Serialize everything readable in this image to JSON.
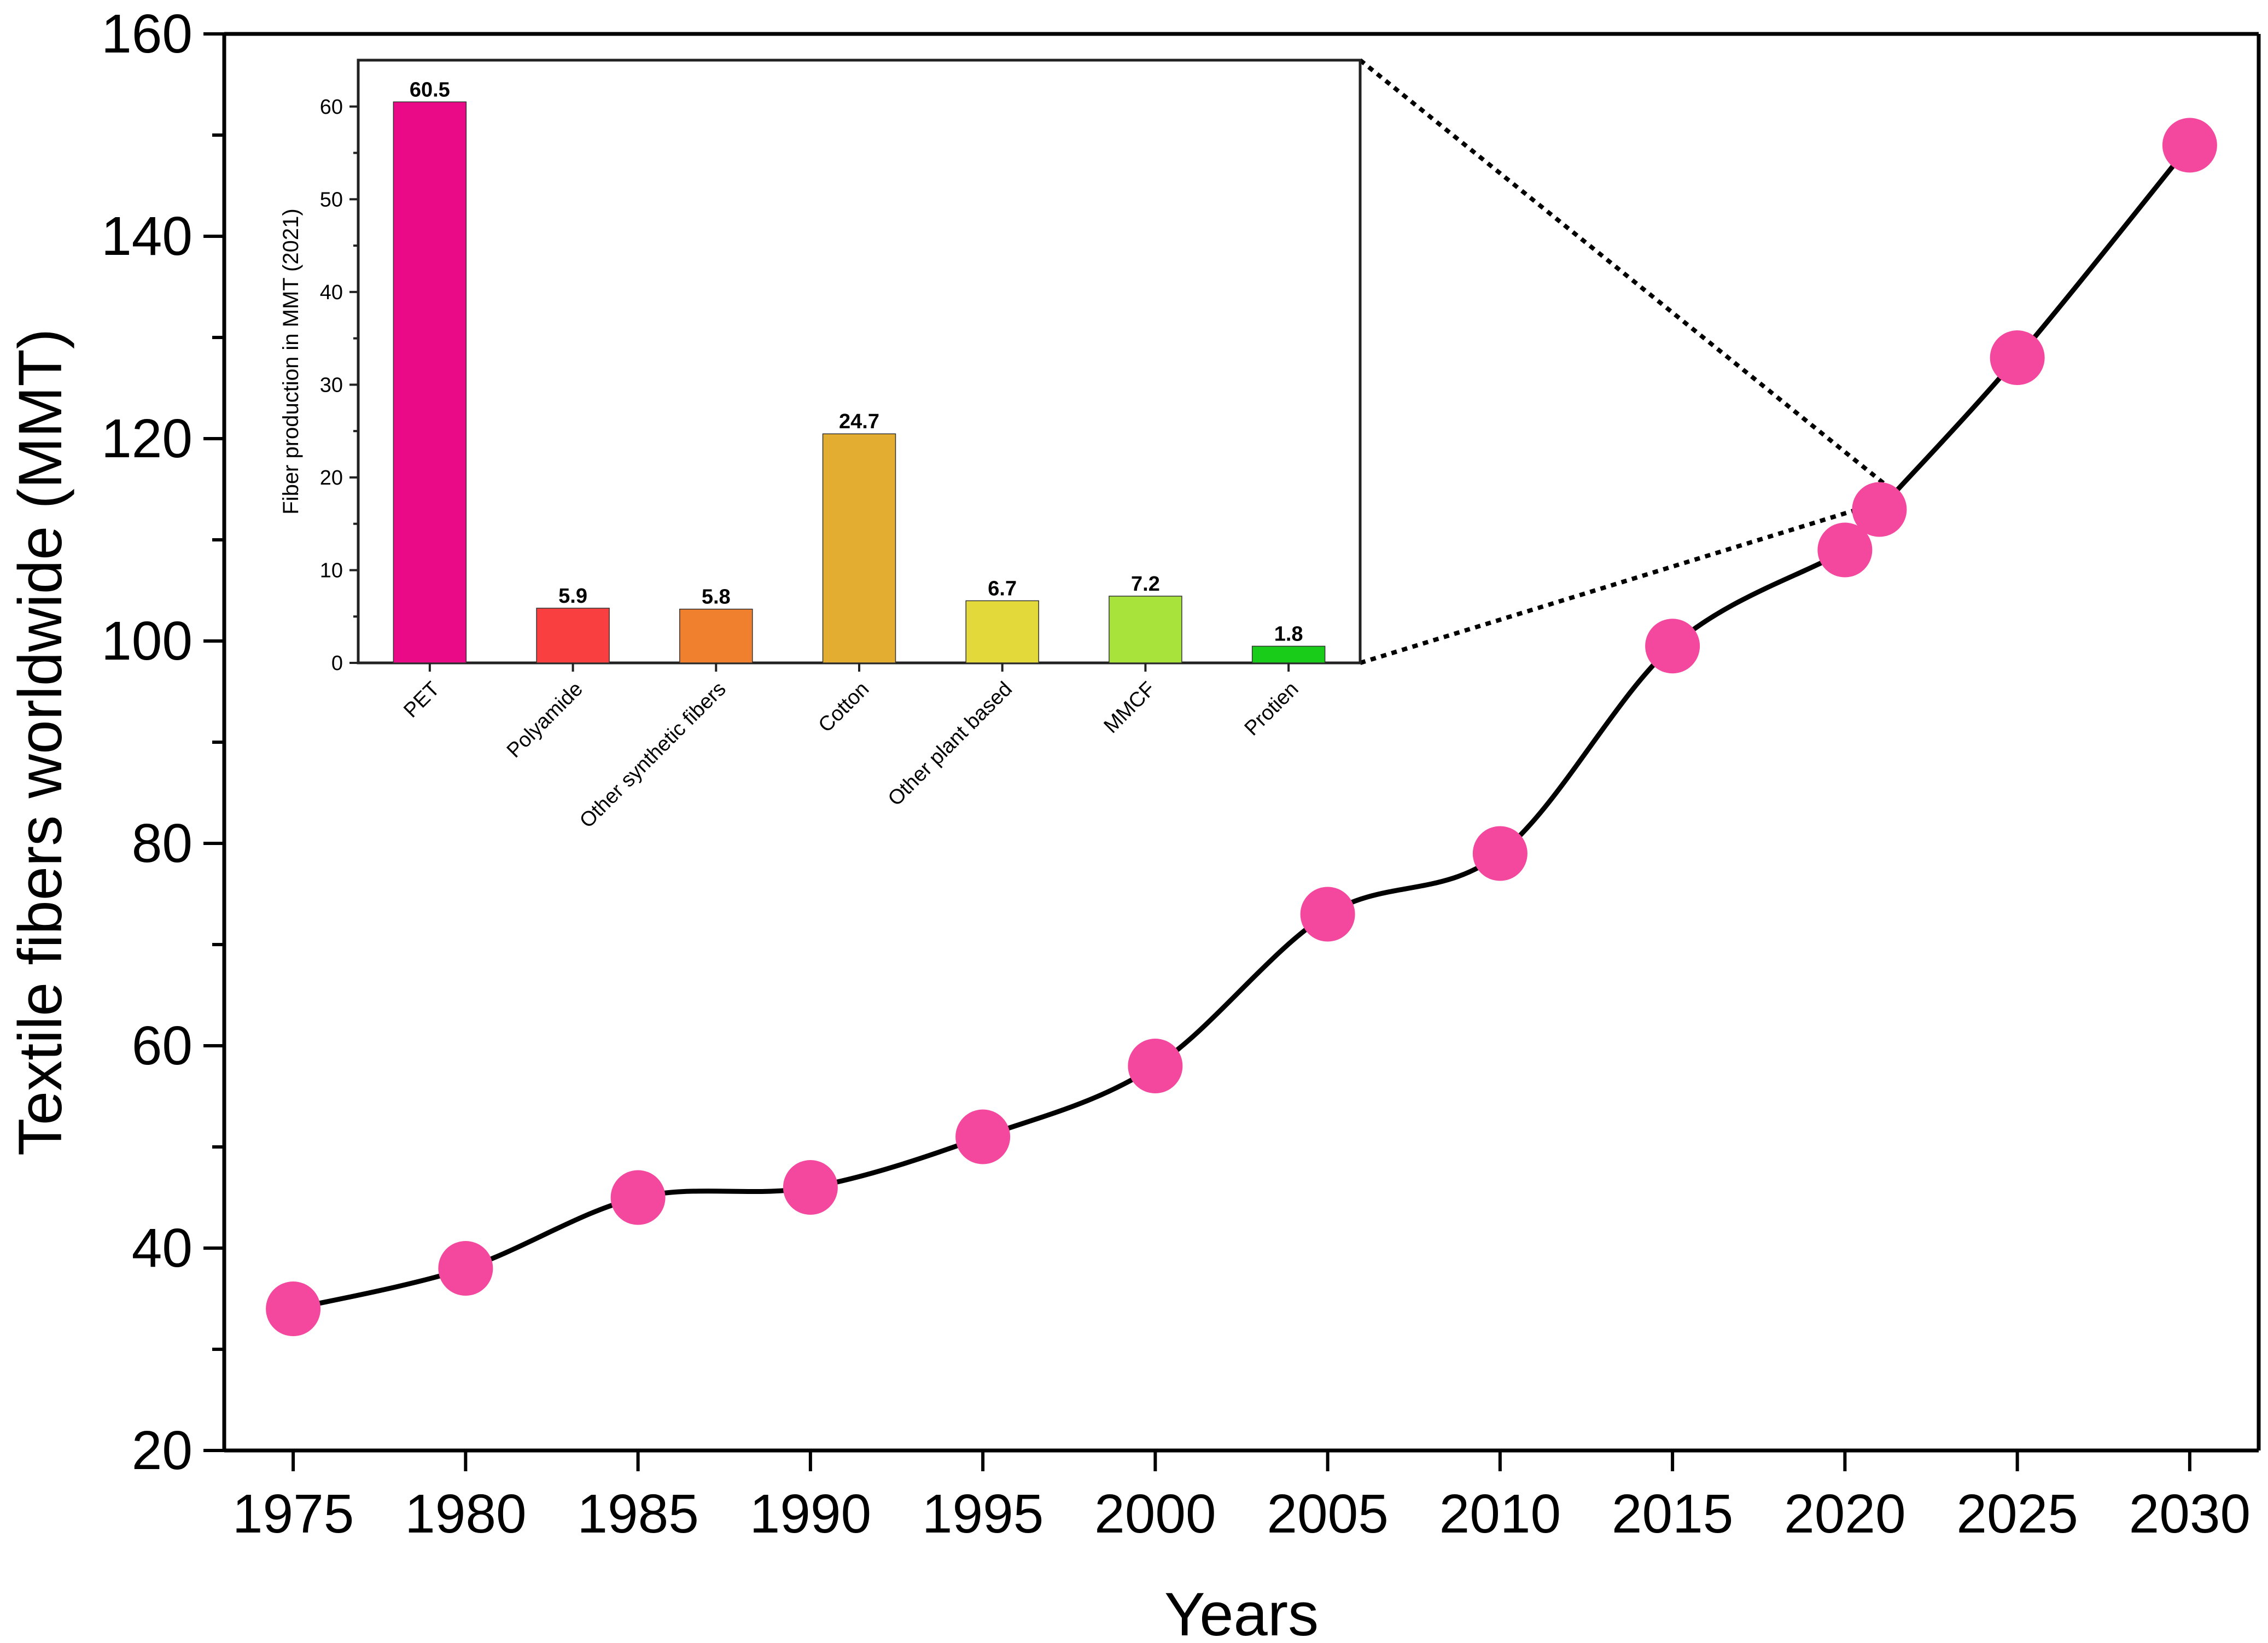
{
  "chart_data": [
    {
      "type": "line",
      "xlabel": "Years",
      "ylabel": "Textile fibers worldwide (MMT)",
      "x_ticks": [
        "1975",
        "1980",
        "1985",
        "1990",
        "1995",
        "2000",
        "2005",
        "2010",
        "2015",
        "2020",
        "2025",
        "2030"
      ],
      "y_ticks": [
        "20",
        "40",
        "60",
        "80",
        "100",
        "120",
        "140",
        "160"
      ],
      "xlim": [
        1973,
        2032
      ],
      "ylim": [
        20,
        160
      ],
      "marker_color": "#f3489e",
      "series": [
        {
          "name": "Textile fibers worldwide",
          "x": [
            1975,
            1980,
            1985,
            1990,
            1995,
            2000,
            2005,
            2010,
            2015,
            2020,
            2021,
            2025,
            2030
          ],
          "y": [
            34,
            38,
            45,
            46,
            51,
            58,
            73,
            79,
            99.5,
            109,
            113,
            128,
            149
          ]
        }
      ]
    },
    {
      "type": "bar",
      "ylabel": "Fiber production in MMT (2021)",
      "categories": [
        "PET",
        "Polyamide",
        "Other synthetic fibers",
        "Cotton",
        "Other plant based",
        "MMCF",
        "Protien"
      ],
      "values": [
        60.5,
        5.9,
        5.8,
        24.7,
        6.7,
        7.2,
        1.8
      ],
      "value_labels": [
        "60.5",
        "5.9",
        "5.8",
        "24.7",
        "6.7",
        "7.2",
        "1.8"
      ],
      "colors": [
        "#ea0a87",
        "#f93f3f",
        "#f07f2e",
        "#e3ad32",
        "#e4d93a",
        "#a7e33b",
        "#19cc19"
      ],
      "y_ticks": [
        "0",
        "10",
        "20",
        "30",
        "40",
        "50",
        "60"
      ],
      "ylim": [
        0,
        65
      ]
    }
  ]
}
